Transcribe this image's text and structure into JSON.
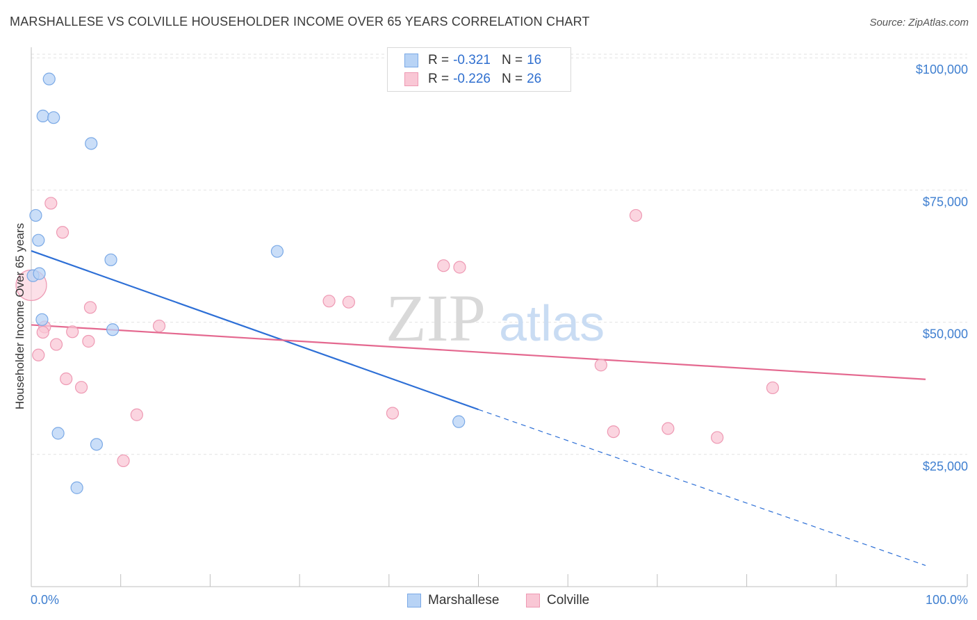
{
  "title": "MARSHALLESE VS COLVILLE HOUSEHOLDER INCOME OVER 65 YEARS CORRELATION CHART",
  "source": "Source: ZipAtlas.com",
  "watermark": {
    "zip": "ZIP",
    "atlas": "atlas"
  },
  "colors": {
    "blue_fill": "#b8d3f5",
    "blue_stroke": "#7aa9e6",
    "blue_line": "#2d6fd6",
    "pink_fill": "#f9c7d5",
    "pink_stroke": "#ee99b3",
    "pink_line": "#e4688f",
    "grid": "#e2e2e2",
    "tick_text": "#3f7fd0"
  },
  "legend": [
    {
      "r_label": "R =",
      "r_value": "-0.321",
      "n_label": "N =",
      "n_value": "16",
      "color": "blue"
    },
    {
      "r_label": "R =",
      "r_value": "-0.226",
      "n_label": "N =",
      "n_value": "26",
      "color": "pink"
    }
  ],
  "bottom_legend": [
    {
      "label": "Marshallese",
      "color": "blue"
    },
    {
      "label": "Colville",
      "color": "pink"
    }
  ],
  "chart_data": {
    "type": "scatter",
    "title": "MARSHALLESE VS COLVILLE HOUSEHOLDER INCOME OVER 65 YEARS CORRELATION CHART",
    "xlabel": "",
    "ylabel": "Householder Income Over 65 years",
    "xlim": [
      0,
      100
    ],
    "ylim": [
      0,
      102000
    ],
    "x_tick_labels": [
      "0.0%",
      "100.0%"
    ],
    "y_ticks": [
      25000,
      50000,
      75000,
      100000
    ],
    "y_tick_labels": [
      "$25,000",
      "$50,000",
      "$75,000",
      "$100,000"
    ],
    "grid": true,
    "series": [
      {
        "name": "Marshallese",
        "color": "blue",
        "points": [
          [
            2.0,
            96000
          ],
          [
            1.3,
            89000
          ],
          [
            2.5,
            88700
          ],
          [
            6.7,
            83800
          ],
          [
            0.5,
            70200
          ],
          [
            0.8,
            65500
          ],
          [
            0.2,
            58800
          ],
          [
            0.9,
            59200
          ],
          [
            8.9,
            61800
          ],
          [
            27.5,
            63400
          ],
          [
            1.2,
            50500
          ],
          [
            9.1,
            48600
          ],
          [
            3.0,
            29000
          ],
          [
            7.3,
            26900
          ],
          [
            5.1,
            18700
          ],
          [
            47.8,
            31200
          ]
        ],
        "trend": {
          "x0": 0,
          "y0": 63500,
          "x1": 50,
          "y1": 33500,
          "dashed_to_x": 100,
          "dashed_to_y": 4000
        }
      },
      {
        "name": "Colville",
        "color": "pink",
        "points": [
          [
            0.0,
            57000
          ],
          [
            2.2,
            72500
          ],
          [
            3.5,
            67000
          ],
          [
            1.5,
            49100
          ],
          [
            1.3,
            48100
          ],
          [
            0.8,
            43800
          ],
          [
            2.8,
            45800
          ],
          [
            4.6,
            48200
          ],
          [
            6.4,
            46400
          ],
          [
            6.6,
            52800
          ],
          [
            14.3,
            49300
          ],
          [
            3.9,
            39300
          ],
          [
            5.6,
            37700
          ],
          [
            11.8,
            32500
          ],
          [
            10.3,
            23800
          ],
          [
            33.3,
            54000
          ],
          [
            35.5,
            53800
          ],
          [
            46.1,
            60700
          ],
          [
            47.9,
            60400
          ],
          [
            40.4,
            32800
          ],
          [
            63.7,
            41900
          ],
          [
            65.1,
            29300
          ],
          [
            67.6,
            70200
          ],
          [
            71.2,
            29900
          ],
          [
            76.7,
            28200
          ],
          [
            82.9,
            37600
          ]
        ],
        "trend": {
          "x0": 0,
          "y0": 49500,
          "x1": 100,
          "y1": 39200
        }
      }
    ]
  }
}
